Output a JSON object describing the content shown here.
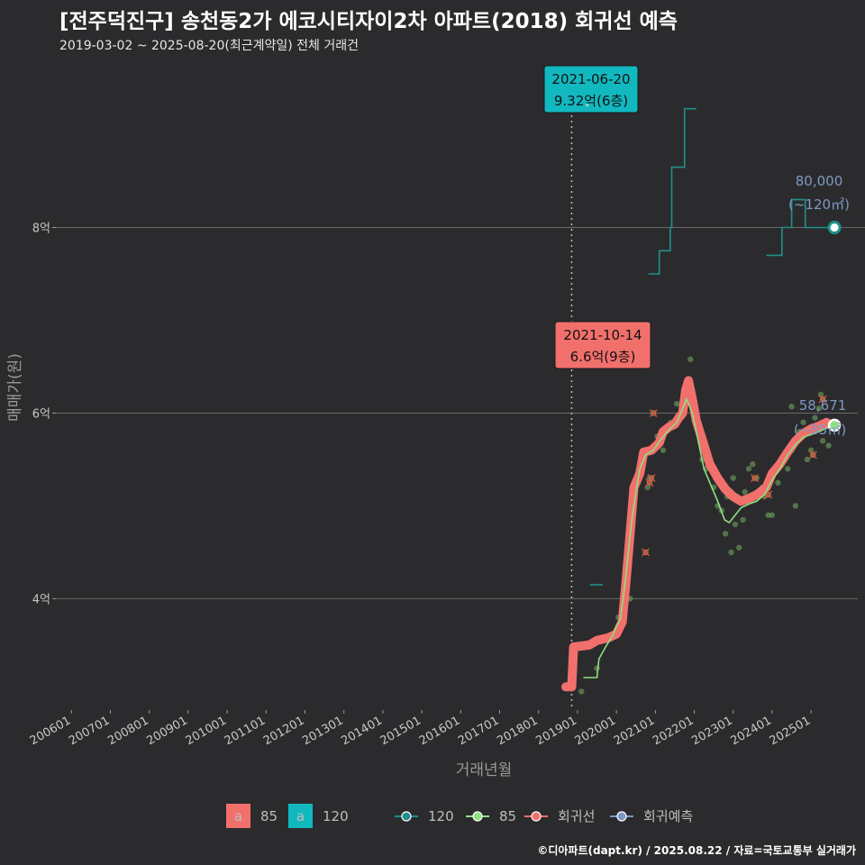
{
  "title": "[전주덕진구] 송천동2가 에코시티자이2차 아파트(2018) 회귀선 예측",
  "subtitle": "2019-03-02 ~ 2025-08-20(최근계약일) 전체 거래건",
  "credit": "©디아파트(dapt.kr) / 2025.08.22 / 자료=국토교통부 실거래가",
  "colors": {
    "s85": "#f2706c",
    "s120": "#11b8bf",
    "line85": "#8fe080",
    "line120": "#21908c",
    "pred": "#7d98c2",
    "grid": "#6a6a6a",
    "vline": "#bbbbbb"
  },
  "chart_data": {
    "type": "line",
    "title": "[전주덕진구] 송천동2가 에코시티자이2차 아파트(2018) 회귀선 예측",
    "xlabel": "거래년월",
    "ylabel": "매매가(원)",
    "xlim": [
      2005.6,
      2026.2
    ],
    "ylim": [
      2.8,
      9.85
    ],
    "x_ticks": [
      {
        "label": "200601",
        "x": 2006.0
      },
      {
        "label": "200701",
        "x": 2007.0
      },
      {
        "label": "200801",
        "x": 2008.0
      },
      {
        "label": "200901",
        "x": 2009.0
      },
      {
        "label": "201001",
        "x": 2010.0
      },
      {
        "label": "201101",
        "x": 2011.0
      },
      {
        "label": "201201",
        "x": 2012.0
      },
      {
        "label": "201301",
        "x": 2013.0
      },
      {
        "label": "201401",
        "x": 2014.0
      },
      {
        "label": "201501",
        "x": 2015.0
      },
      {
        "label": "201601",
        "x": 2016.0
      },
      {
        "label": "201701",
        "x": 2017.0
      },
      {
        "label": "201801",
        "x": 2018.0
      },
      {
        "label": "201901",
        "x": 2019.0
      },
      {
        "label": "202001",
        "x": 2020.0
      },
      {
        "label": "202101",
        "x": 2021.0
      },
      {
        "label": "202201",
        "x": 2022.0
      },
      {
        "label": "202301",
        "x": 2023.0
      },
      {
        "label": "202401",
        "x": 2024.0
      },
      {
        "label": "202501",
        "x": 2025.0
      }
    ],
    "y_ticks": [
      {
        "label": "4억",
        "y": 4
      },
      {
        "label": "6억",
        "y": 6
      },
      {
        "label": "8억",
        "y": 8
      }
    ],
    "vline_x": 2018.85,
    "series": [
      {
        "name": "회귀선",
        "area": "85",
        "points": [
          [
            2018.7,
            3.05
          ],
          [
            2018.85,
            3.05
          ],
          [
            2018.9,
            3.48
          ],
          [
            2019.3,
            3.5
          ],
          [
            2019.5,
            3.55
          ],
          [
            2019.8,
            3.58
          ],
          [
            2020.0,
            3.62
          ],
          [
            2020.15,
            3.75
          ],
          [
            2020.25,
            4.2
          ],
          [
            2020.35,
            4.7
          ],
          [
            2020.45,
            5.2
          ],
          [
            2020.6,
            5.35
          ],
          [
            2020.7,
            5.58
          ],
          [
            2020.9,
            5.6
          ],
          [
            2021.1,
            5.68
          ],
          [
            2021.2,
            5.8
          ],
          [
            2021.35,
            5.85
          ],
          [
            2021.5,
            5.88
          ],
          [
            2021.6,
            5.95
          ],
          [
            2021.7,
            6.0
          ],
          [
            2021.78,
            6.25
          ],
          [
            2021.85,
            6.35
          ],
          [
            2021.95,
            6.15
          ],
          [
            2022.05,
            5.92
          ],
          [
            2022.2,
            5.72
          ],
          [
            2022.4,
            5.45
          ],
          [
            2022.6,
            5.3
          ],
          [
            2022.8,
            5.18
          ],
          [
            2023.0,
            5.1
          ],
          [
            2023.2,
            5.05
          ],
          [
            2023.4,
            5.08
          ],
          [
            2023.6,
            5.12
          ],
          [
            2023.85,
            5.2
          ],
          [
            2024.0,
            5.35
          ],
          [
            2024.2,
            5.45
          ],
          [
            2024.4,
            5.58
          ],
          [
            2024.6,
            5.7
          ],
          [
            2024.8,
            5.78
          ],
          [
            2025.0,
            5.83
          ],
          [
            2025.2,
            5.86
          ],
          [
            2025.4,
            5.9
          ],
          [
            2025.5,
            5.87
          ]
        ]
      },
      {
        "name": "85",
        "area": "85",
        "points": [
          [
            2019.15,
            3.15
          ],
          [
            2019.5,
            3.15
          ],
          [
            2019.55,
            3.35
          ],
          [
            2019.75,
            3.5
          ],
          [
            2019.9,
            3.6
          ],
          [
            2020.0,
            3.7
          ],
          [
            2020.1,
            3.78
          ],
          [
            2020.2,
            4.1
          ],
          [
            2020.28,
            4.4
          ],
          [
            2020.38,
            4.8
          ],
          [
            2020.5,
            5.15
          ],
          [
            2020.6,
            5.4
          ],
          [
            2020.75,
            5.55
          ],
          [
            2020.95,
            5.6
          ],
          [
            2021.15,
            5.72
          ],
          [
            2021.35,
            5.82
          ],
          [
            2021.55,
            5.9
          ],
          [
            2021.7,
            6.05
          ],
          [
            2021.8,
            6.15
          ],
          [
            2021.95,
            6.0
          ],
          [
            2022.1,
            5.7
          ],
          [
            2022.25,
            5.4
          ],
          [
            2022.45,
            5.2
          ],
          [
            2022.6,
            5.05
          ],
          [
            2022.78,
            4.85
          ],
          [
            2022.9,
            4.82
          ],
          [
            2023.05,
            4.9
          ],
          [
            2023.2,
            4.98
          ],
          [
            2023.4,
            5.02
          ],
          [
            2023.6,
            5.05
          ],
          [
            2023.8,
            5.12
          ],
          [
            2024.0,
            5.28
          ],
          [
            2024.2,
            5.4
          ],
          [
            2024.4,
            5.55
          ],
          [
            2024.6,
            5.66
          ],
          [
            2024.8,
            5.74
          ],
          [
            2025.0,
            5.77
          ],
          [
            2025.2,
            5.8
          ],
          [
            2025.5,
            5.86
          ]
        ]
      },
      {
        "name": "120",
        "area": "120",
        "segments": [
          [
            [
              2019.32,
              4.15
            ],
            [
              2019.65,
              4.15
            ]
          ],
          [
            [
              2020.82,
              7.5
            ],
            [
              2021.1,
              7.5
            ],
            [
              2021.1,
              7.75
            ],
            [
              2021.38,
              7.75
            ],
            [
              2021.38,
              8.0
            ],
            [
              2021.42,
              8.0
            ],
            [
              2021.42,
              8.65
            ],
            [
              2021.75,
              8.65
            ],
            [
              2021.75,
              9.28
            ],
            [
              2022.05,
              9.28
            ]
          ],
          [
            [
              2023.85,
              7.7
            ],
            [
              2024.25,
              7.7
            ],
            [
              2024.25,
              8.0
            ],
            [
              2024.5,
              8.0
            ],
            [
              2024.5,
              8.3
            ],
            [
              2024.85,
              8.3
            ],
            [
              2024.85,
              8.0
            ],
            [
              2025.5,
              8.0
            ]
          ]
        ]
      }
    ],
    "scatter": [
      [
        2019.1,
        3.0
      ],
      [
        2019.5,
        3.25
      ],
      [
        2020.05,
        3.8
      ],
      [
        2020.35,
        4.0
      ],
      [
        2020.8,
        5.2
      ],
      [
        2020.85,
        5.3
      ],
      [
        2020.9,
        5.6
      ],
      [
        2021.0,
        5.65
      ],
      [
        2021.05,
        5.75
      ],
      [
        2021.2,
        5.6
      ],
      [
        2021.4,
        5.9
      ],
      [
        2021.55,
        6.1
      ],
      [
        2021.65,
        5.95
      ],
      [
        2021.75,
        6.2
      ],
      [
        2021.9,
        6.58
      ],
      [
        2022.0,
        6.1
      ],
      [
        2022.1,
        5.8
      ],
      [
        2022.2,
        5.5
      ],
      [
        2022.3,
        5.4
      ],
      [
        2022.5,
        5.2
      ],
      [
        2022.6,
        5.0
      ],
      [
        2022.7,
        4.95
      ],
      [
        2022.8,
        4.7
      ],
      [
        2022.85,
        5.1
      ],
      [
        2022.95,
        4.5
      ],
      [
        2023.0,
        5.3
      ],
      [
        2023.05,
        4.8
      ],
      [
        2023.15,
        4.55
      ],
      [
        2023.25,
        4.85
      ],
      [
        2023.3,
        5.15
      ],
      [
        2023.4,
        5.4
      ],
      [
        2023.5,
        5.45
      ],
      [
        2023.6,
        5.3
      ],
      [
        2023.75,
        5.2
      ],
      [
        2023.8,
        5.1
      ],
      [
        2023.9,
        4.9
      ],
      [
        2024.0,
        4.9
      ],
      [
        2024.15,
        5.25
      ],
      [
        2024.3,
        5.5
      ],
      [
        2024.4,
        5.4
      ],
      [
        2024.5,
        5.6
      ],
      [
        2024.6,
        5.0
      ],
      [
        2024.7,
        5.8
      ],
      [
        2024.8,
        5.9
      ],
      [
        2024.9,
        5.5
      ],
      [
        2025.0,
        5.6
      ],
      [
        2025.1,
        5.95
      ],
      [
        2025.2,
        6.05
      ],
      [
        2025.3,
        5.7
      ],
      [
        2025.45,
        5.65
      ],
      [
        2024.5,
        6.07
      ],
      [
        2025.25,
        6.2
      ]
    ],
    "crossed_points": [
      [
        2020.75,
        4.5
      ],
      [
        2020.85,
        5.25
      ],
      [
        2020.9,
        5.3
      ],
      [
        2020.95,
        6.0
      ],
      [
        2023.55,
        5.3
      ],
      [
        2023.9,
        5.12
      ],
      [
        2025.05,
        5.55
      ],
      [
        2025.3,
        6.15
      ]
    ],
    "annotations": [
      {
        "id": "ann120",
        "date": "2021-06-20",
        "value": "9.32억(6층)",
        "x": 2019.25,
        "y": 9.32
      },
      {
        "id": "ann85",
        "date": "2021-10-14",
        "value": "6.6억(9층)",
        "x": 2021.85,
        "y": 6.6
      }
    ],
    "end_points": [
      {
        "id": "e120",
        "label": "80,000",
        "sub": "(~120㎡)",
        "x": 2025.6,
        "y": 8.0
      },
      {
        "id": "e85",
        "label": "58,671",
        "sub": "(~85㎡)",
        "x": 2025.6,
        "y": 5.87
      }
    ],
    "legend": {
      "fill_items": [
        {
          "key": "a",
          "label": "85"
        },
        {
          "key": "a",
          "label": "120"
        }
      ],
      "line_items": [
        {
          "label": "120"
        },
        {
          "label": "85"
        },
        {
          "label": "회귀선"
        },
        {
          "label": "회귀예측"
        }
      ]
    }
  }
}
